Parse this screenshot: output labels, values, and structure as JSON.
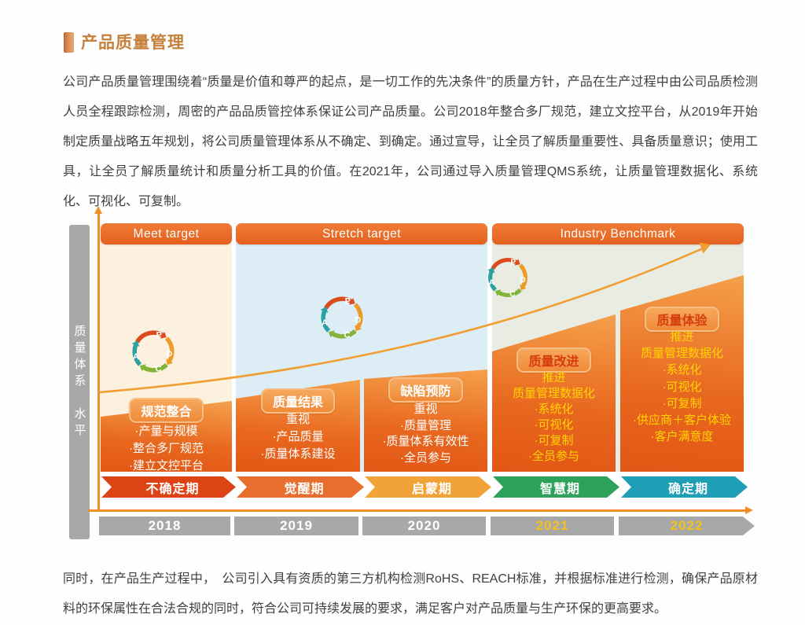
{
  "title": "产品质量管理",
  "intro": "公司产品质量管理围绕着“质量是价值和尊严的起点，是一切工作的先决条件”的质量方针，产品在生产过程中由公司品质检测人员全程跟踪检测，周密的产品品质管控体系保证公司产品质量。公司2018年整合多厂规范，建立文控平台，从2019年开始制定质量战略五年规划，将公司质量管理体系从不确定、到确定。通过宣导，让全员了解质量重要性、具备质量意识；使用工具，让全员了解质量统计和质量分析工具的价值。在2021年，公司通过导入质量管理QMS系统，让质量管理数据化、系统化、可视化、可复制。",
  "outro": "同时，在产品生产过程中，　公司引入具有资质的第三方机构检测RoHS、REACH标准，并根据标准进行检测，确保产品原材料的环保属性在合法合规的同时，符合公司可持续发展的要求，满足客户对产品质量与生产环保的更高要求。",
  "diagram": {
    "y_axis_label": "质量体系　水平",
    "pdca_letters": [
      "P",
      "D",
      "C",
      "A"
    ],
    "colors": {
      "axis": "#ee8f28",
      "growth_arrow": "#f29d32",
      "year_bar": "#a8a8a8",
      "block_gradient_top": "#f5a04b",
      "block_gradient_bottom": "#e25715",
      "header_bar": "#e8671f"
    },
    "headers": [
      {
        "label": "Meet target",
        "panel_color": "#fcf1df"
      },
      {
        "label": "Stretch target",
        "panel_color": "#dcedf6"
      },
      {
        "label": "Industry Benchmark",
        "panel_color": "#e8ece2"
      }
    ],
    "columns": [
      {
        "year": "2018",
        "year_text_color": "#ffffff",
        "stage": "不确定期",
        "stage_color": "#dc4315",
        "title": "规范整合",
        "title_text_color": "#ffffff",
        "item_text_color": "#ffffff",
        "items": [
          "·产量与规模",
          "·整合多厂规范",
          "·建立文控平台"
        ]
      },
      {
        "year": "2019",
        "year_text_color": "#ffffff",
        "stage": "觉醒期",
        "stage_color": "#e86e2e",
        "title": "质量结果",
        "title_text_color": "#ffffff",
        "item_text_color": "#ffffff",
        "items": [
          "重视",
          "·产品质量",
          "·质量体系建设"
        ]
      },
      {
        "year": "2020",
        "year_text_color": "#ffffff",
        "stage": "启蒙期",
        "stage_color": "#f1a238",
        "title": "缺陷预防",
        "title_text_color": "#ffffff",
        "item_text_color": "#ffffff",
        "items": [
          "重视",
          "·质量管理",
          "·质量体系有效性",
          "·全员参与"
        ]
      },
      {
        "year": "2021",
        "year_text_color": "#f3c11c",
        "stage": "智慧期",
        "stage_color": "#2ea15b",
        "title": "质量改进",
        "title_text_color": "#d63c0e",
        "item_text_color": "#ffd400",
        "items": [
          "推进",
          "质量管理数据化",
          "·系统化",
          "·可视化",
          "·可复制",
          "·全员参与"
        ]
      },
      {
        "year": "2022",
        "year_text_color": "#f3c11c",
        "stage": "确定期",
        "stage_color": "#1f9fb5",
        "title": "质量体验",
        "title_text_color": "#d63c0e",
        "item_text_color": "#ffd400",
        "items": [
          "推进",
          "质量管理数据化",
          "·系统化",
          "·可视化",
          "·可复制",
          "·供应商＋客户体验",
          "·客户满意度"
        ]
      }
    ]
  }
}
